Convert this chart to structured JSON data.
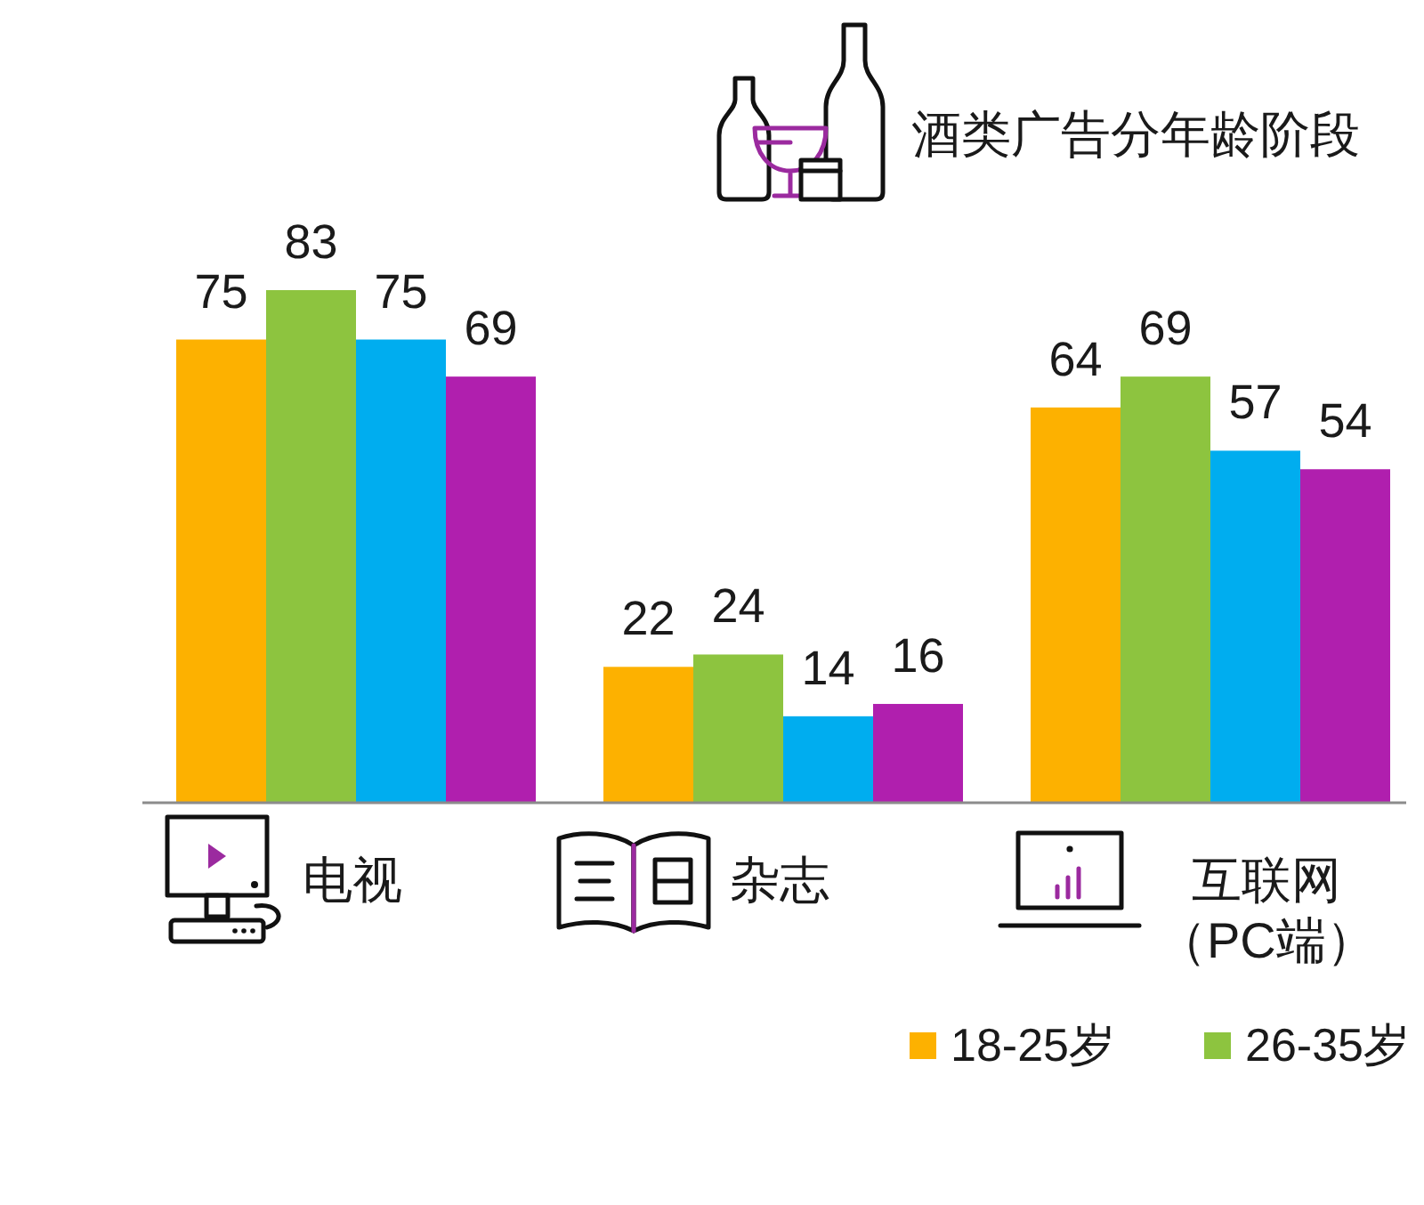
{
  "chart_data": {
    "type": "bar",
    "title": "酒类广告分年龄阶段",
    "categories": [
      "电视",
      "杂志",
      "互联网（PC端）"
    ],
    "series": [
      {
        "name": "18-25岁",
        "color": "#fdb100",
        "values": [
          75,
          22,
          64
        ]
      },
      {
        "name": "26-35岁",
        "color": "#8dc43f",
        "values": [
          83,
          24,
          69
        ]
      },
      {
        "color": "#00adef",
        "values": [
          75,
          14,
          57
        ]
      },
      {
        "color": "#b01fae",
        "values": [
          69,
          16,
          54
        ]
      }
    ],
    "data_labels": true,
    "legend": "bottom right"
  }
}
